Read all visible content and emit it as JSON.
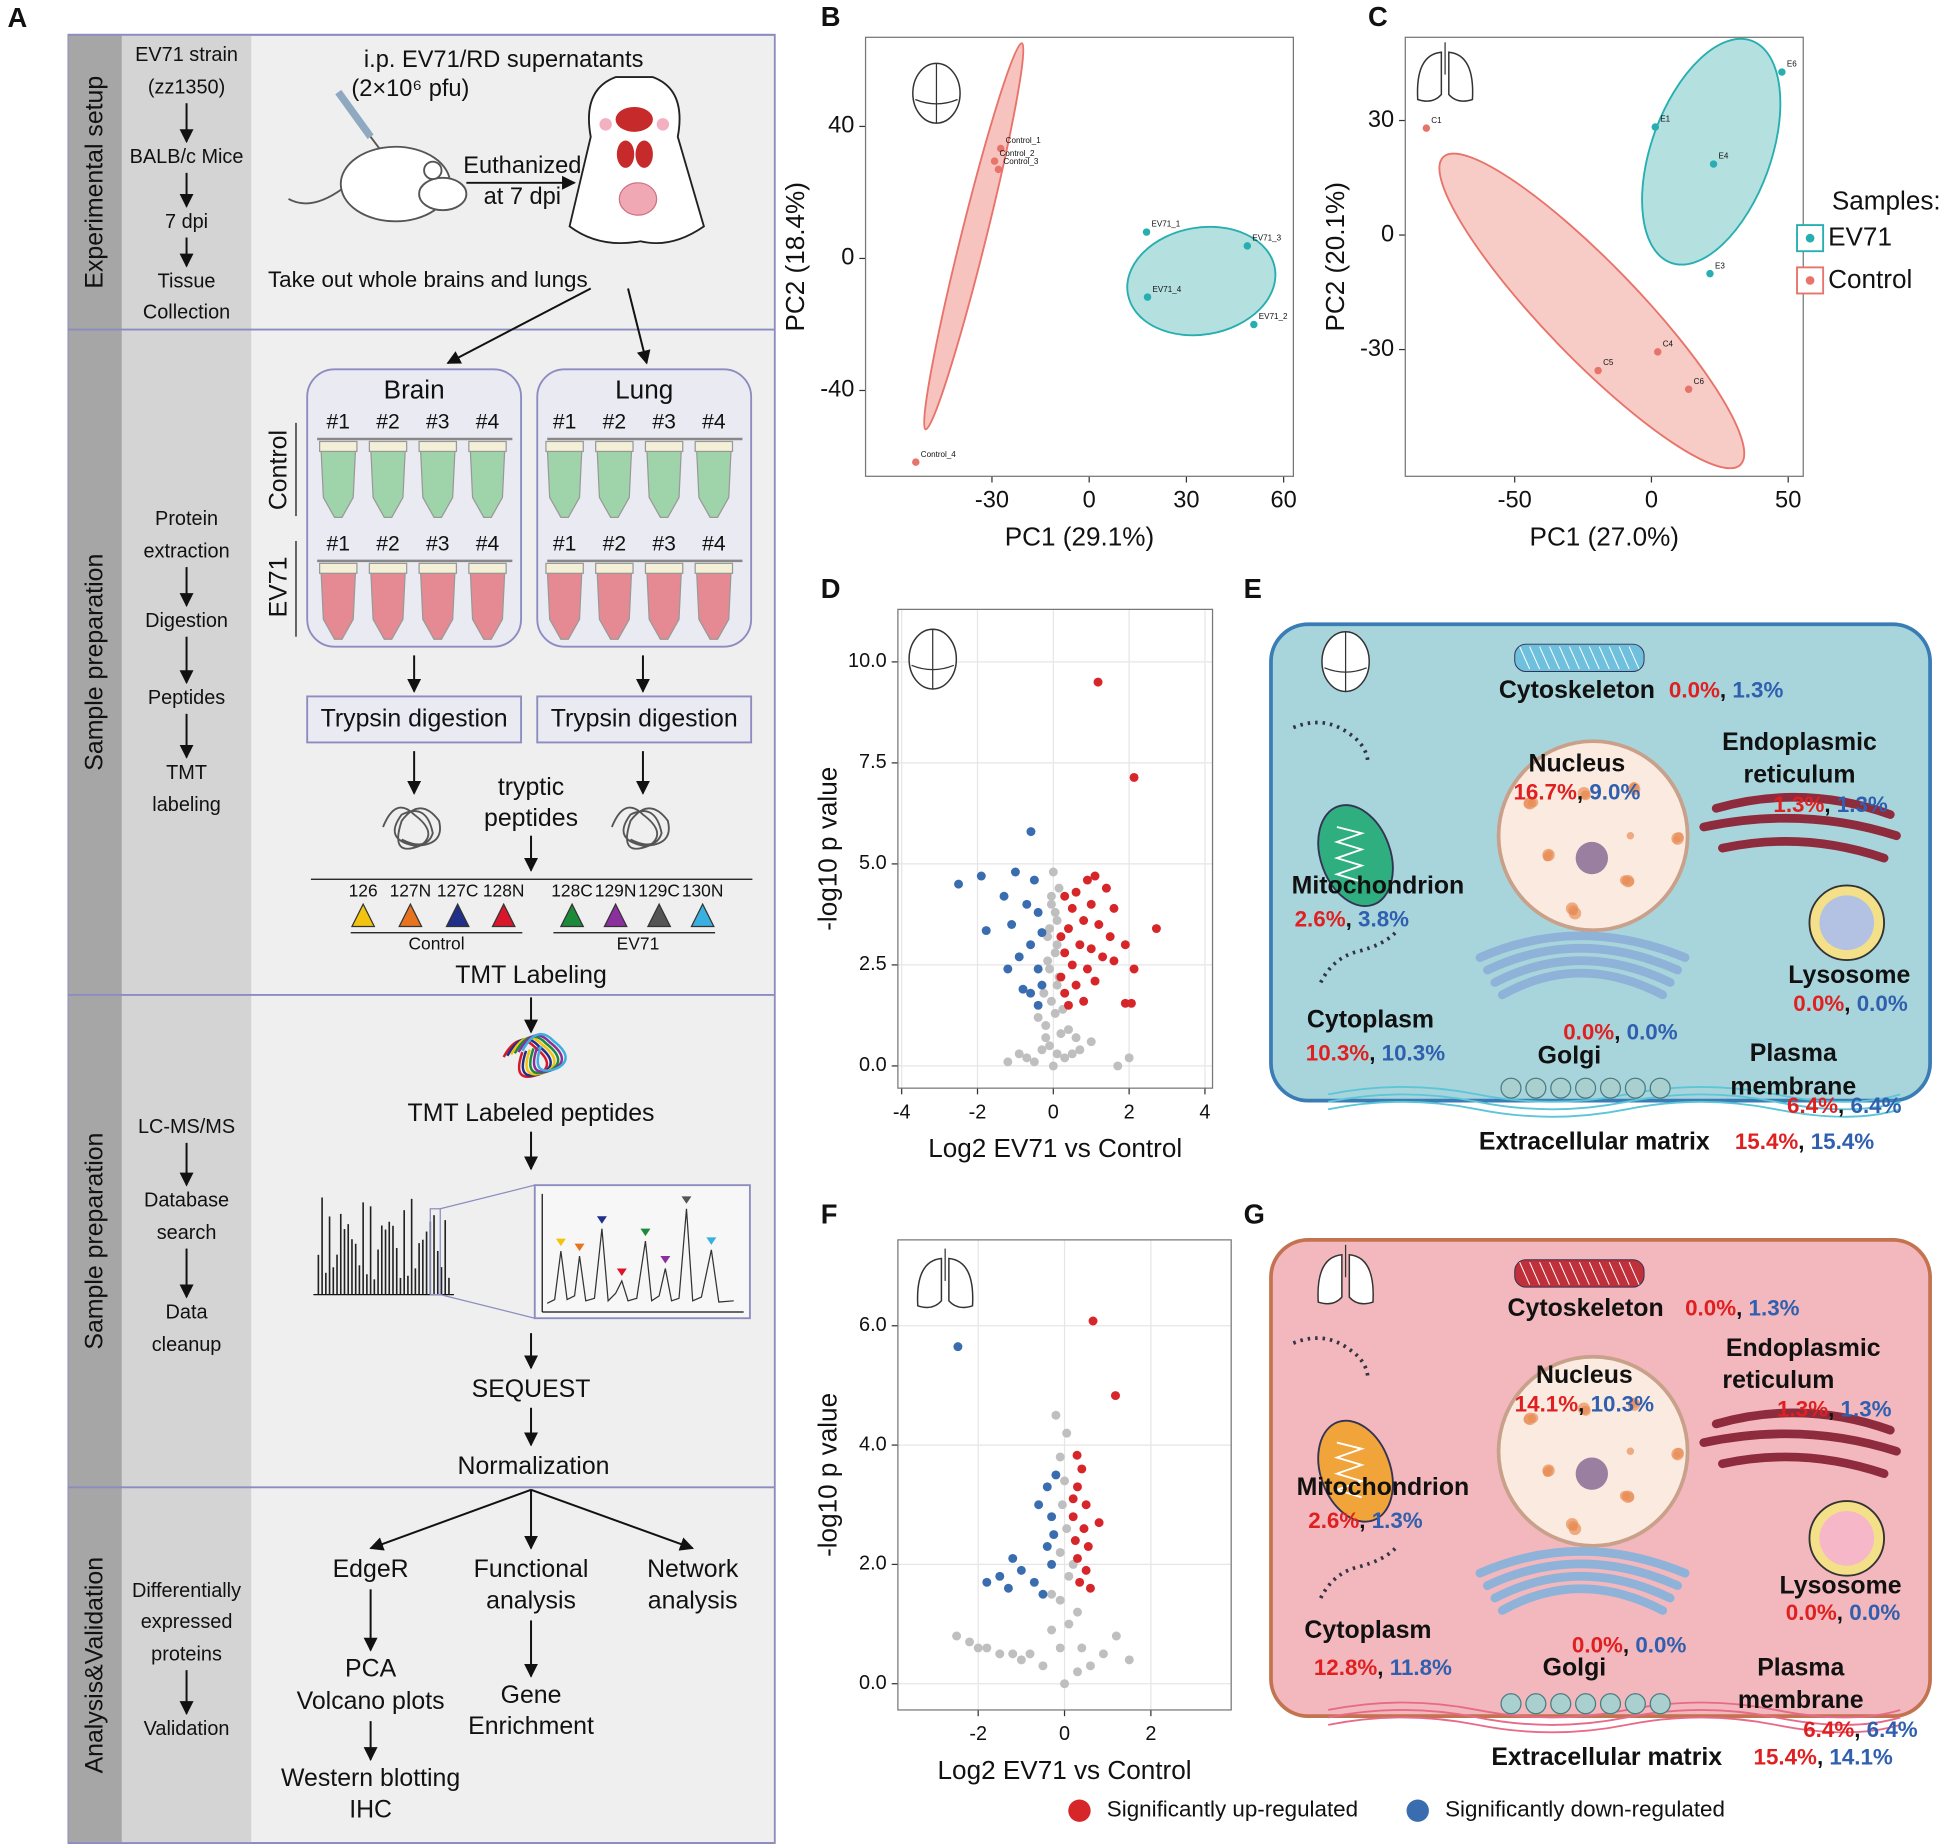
{
  "panel_a": {
    "label": "A",
    "rows": [
      {
        "title": "Experimental setup",
        "steps": [
          [
            "EV71 strain",
            "(zz1350)"
          ],
          [
            "BALB/c Mice"
          ],
          [
            "7 dpi"
          ],
          [
            "Tissue",
            "Collection"
          ]
        ]
      },
      {
        "title": "Sample preparation",
        "steps": [
          [
            "Protein",
            "extraction"
          ],
          [
            "Digestion"
          ],
          [
            "Peptides"
          ],
          [
            "TMT",
            "labeling"
          ]
        ]
      },
      {
        "title": "Sample preparation",
        "steps": [
          [
            "LC-MS/MS"
          ],
          [
            "Database",
            "search"
          ],
          [
            "Data",
            "cleanup"
          ]
        ]
      },
      {
        "title": "Analysis&Validation",
        "steps": [
          [
            "Differentially",
            "expressed",
            "proteins"
          ],
          [
            "Validation"
          ]
        ]
      }
    ],
    "injection": [
      "i.p. EV71/RD supernatants",
      "(2×10⁶ pfu)"
    ],
    "euthanized": [
      "Euthanized",
      "at 7 dpi"
    ],
    "dissection": "Take out whole brains and lungs",
    "tissues": [
      "Brain",
      "Lung"
    ],
    "tubes": [
      "#1",
      "#2",
      "#3",
      "#4"
    ],
    "groups": [
      "Control",
      "EV71"
    ],
    "digestion": "Trypsin digestion",
    "peptides": [
      "tryptic",
      "peptides"
    ],
    "tmt_tags": [
      {
        "label": "126",
        "color": "#f2c30f"
      },
      {
        "label": "127N",
        "color": "#e8731e"
      },
      {
        "label": "127C",
        "color": "#1f2f8a"
      },
      {
        "label": "128N",
        "color": "#d8182a"
      },
      {
        "label": "128C",
        "color": "#1b8a3a"
      },
      {
        "label": "129N",
        "color": "#8b2f9e"
      },
      {
        "label": "129C",
        "color": "#555555"
      },
      {
        "label": "130N",
        "color": "#3ab0e0"
      }
    ],
    "tmt_labeling": "TMT Labeling",
    "labeled_peptides": "TMT Labeled peptides",
    "search": "SEQUEST",
    "normalization": "Normalization",
    "analyses": [
      {
        "lines": [
          "EdgeR"
        ],
        "next": [
          [
            "PCA",
            "Volcano plots"
          ],
          [
            "Western blotting",
            "IHC"
          ]
        ]
      },
      {
        "lines": [
          "Functional",
          "analysis"
        ],
        "next": [
          [
            "Gene",
            "Enrichment"
          ]
        ]
      },
      {
        "lines": [
          "Network",
          "analysis"
        ]
      }
    ]
  },
  "chart_data": [
    {
      "type": "scatter",
      "panel": "B",
      "x_label": "PC1 (29.1%)",
      "y_label": "PC2 (18.4%)",
      "xlim": [
        -69,
        63
      ],
      "ylim": [
        -66,
        67
      ],
      "xticks": [
        -30,
        0,
        30,
        60
      ],
      "yticks": [
        -40,
        0,
        40
      ],
      "series": [
        {
          "color": "#e8736a",
          "x": [
            -27.3,
            -29.2,
            -28,
            -53.5
          ],
          "values": [
            33.3,
            29.5,
            27,
            -61.7
          ],
          "point_labels": [
            "Control_1",
            "Control_2",
            "Control_3",
            "Control_4"
          ]
        },
        {
          "color": "#26aeb0",
          "x": [
            17.7,
            50.8,
            48.8,
            18
          ],
          "values": [
            8,
            -20,
            3.8,
            -11.7
          ],
          "point_labels": [
            "EV71_1",
            "EV71_2",
            "EV71_3",
            "EV71_4"
          ]
        }
      ]
    },
    {
      "type": "scatter",
      "panel": "C",
      "x_label": "PC1 (27.0%)",
      "y_label": "PC2 (20.1%)",
      "xlim": [
        -90,
        55.5
      ],
      "ylim": [
        -63.2,
        51.8
      ],
      "xticks": [
        -50,
        0,
        50
      ],
      "yticks": [
        -30,
        0,
        30
      ],
      "legend": "right",
      "legend_title": "Samples:",
      "series": [
        {
          "name": "EV71",
          "color": "#26aeb0",
          "x": [
            1.4,
            21.4,
            22.7,
            47.7
          ],
          "values": [
            28.3,
            -10.1,
            18.6,
            42.7
          ],
          "point_labels": [
            "E1",
            "E3",
            "E4",
            "E6"
          ]
        },
        {
          "name": "Control",
          "color": "#e8736a",
          "x": [
            -82.3,
            2.3,
            -19.5,
            13.6
          ],
          "values": [
            28,
            -30.6,
            -35.5,
            -40.4
          ],
          "point_labels": [
            "C1",
            "C4",
            "C5",
            "C6"
          ]
        }
      ]
    },
    {
      "type": "scatter",
      "panel": "D",
      "x_label": "Log2 EV71 vs Control",
      "y_label": "-log10 p value",
      "grid": true,
      "xlim": [
        -4.1,
        4.2
      ],
      "ylim": [
        -0.55,
        11.3
      ],
      "xticks": [
        -4,
        -2,
        0,
        2,
        4
      ],
      "yticks": [
        {
          "value": 0,
          "label": "0.0"
        },
        2.5,
        {
          "value": 5,
          "label": "5.0"
        },
        7.5,
        {
          "value": 10,
          "label": "10.0"
        }
      ],
      "series": [
        {
          "color": "#bfbfbf",
          "x": [
            0,
            0.1,
            -0.1,
            0.2,
            -0.2,
            0.05,
            -0.05,
            0.1,
            -0.1,
            0.05,
            -0.15,
            0.1,
            -0.05,
            0.15,
            0,
            -0.3,
            0.3,
            -0.5,
            0.5,
            -0.2,
            0.4,
            -0.4,
            0.25,
            -0.25,
            0.15,
            -0.15,
            0.1,
            -0.1,
            0.05,
            -0.05,
            -0.7,
            0.7,
            -0.9,
            1.0,
            1.7,
            2.0,
            -1.2,
            0.6
          ],
          "values": [
            0,
            0.3,
            0.5,
            0.8,
            1.0,
            1.3,
            1.6,
            2.0,
            2.4,
            2.8,
            3.2,
            3.6,
            4.0,
            4.4,
            4.8,
            0.4,
            0.2,
            0.1,
            0.3,
            0.7,
            0.9,
            1.2,
            1.4,
            1.8,
            2.2,
            2.6,
            3.0,
            3.4,
            3.8,
            4.2,
            0.2,
            0.4,
            0.3,
            0.6,
            0.0,
            0.2,
            0.1,
            0.7
          ]
        },
        {
          "color": "#d7262a",
          "x": [
            1.18,
            2.13,
            2.72,
            2.13,
            1.9,
            2.06,
            1.1,
            0.9,
            1.4,
            0.6,
            0.3,
            1.0,
            0.5,
            1.6,
            0.8,
            1.2,
            0.4,
            0.2,
            1.5,
            0.7,
            1.0,
            0.3,
            1.3,
            0.5,
            0.9,
            0.2,
            1.1,
            0.6,
            0.3,
            0.8,
            1.6,
            0.4,
            1.9
          ],
          "values": [
            9.5,
            7.14,
            3.4,
            2.4,
            1.55,
            1.55,
            4.7,
            4.6,
            4.4,
            4.3,
            4.2,
            4.0,
            3.9,
            3.9,
            3.6,
            3.5,
            3.4,
            3.2,
            3.2,
            3.0,
            2.9,
            2.8,
            2.7,
            2.5,
            2.4,
            2.2,
            2.1,
            2.0,
            1.8,
            1.6,
            2.6,
            1.5,
            3.0
          ]
        },
        {
          "color": "#3a6db0",
          "x": [
            -0.59,
            -2.5,
            -1.77,
            -1.9,
            -1.0,
            -0.5,
            -1.3,
            -0.7,
            -0.4,
            -1.1,
            -0.3,
            -0.6,
            -0.9,
            -0.4,
            -1.2,
            -0.3,
            -0.6,
            -0.4,
            -0.8
          ],
          "values": [
            5.8,
            4.5,
            3.35,
            4.7,
            4.8,
            4.6,
            4.2,
            4.0,
            3.8,
            3.5,
            3.3,
            3.0,
            2.7,
            2.4,
            2.4,
            2.0,
            1.8,
            1.5,
            1.9
          ]
        }
      ]
    },
    {
      "type": "scatter",
      "panel": "F",
      "x_label": "Log2 EV71 vs Control",
      "y_label": "-log10 p value",
      "grid": true,
      "legend": "bottom",
      "xlim": [
        -3.86,
        3.86
      ],
      "ylim": [
        -0.44,
        7.44
      ],
      "xticks": [
        -2,
        0,
        2
      ],
      "yticks": [
        {
          "value": 0,
          "label": "0.0"
        },
        {
          "value": 2,
          "label": "2.0"
        },
        {
          "value": 4,
          "label": "4.0"
        },
        {
          "value": 6,
          "label": "6.0"
        }
      ],
      "series": [
        {
          "color": "#bfbfbf",
          "x": [
            -2.5,
            -2.0,
            -1.5,
            -1.0,
            -0.5,
            0,
            0.3,
            0.6,
            0.9,
            1.2,
            -0.1,
            0.1,
            -0.1,
            0.1,
            -0.1,
            0.05,
            -0.05,
            0,
            -0.1,
            0.05,
            -0.2,
            -0.8,
            -1.8,
            -2.2,
            -0.3,
            0.3,
            -0.3,
            0.2,
            1.5,
            -1.2,
            0.4
          ],
          "values": [
            0.8,
            0.6,
            0.5,
            0.4,
            0.3,
            0,
            0.2,
            0.3,
            0.5,
            0.8,
            0.6,
            1.0,
            1.4,
            1.8,
            2.2,
            2.6,
            3.0,
            3.4,
            3.8,
            4.2,
            4.5,
            0.5,
            0.6,
            0.7,
            0.9,
            1.2,
            1.5,
            2.0,
            0.4,
            0.5,
            0.6
          ]
        },
        {
          "name": "Significantly up-regulated",
          "color": "#d7262a",
          "x": [
            0.66,
            1.18,
            0.29,
            0.8,
            0.3,
            0.5,
            0.2,
            0.45,
            0.25,
            0.55,
            0.3,
            0.5,
            0.35,
            0.6,
            0.4,
            0.2
          ],
          "values": [
            6.08,
            4.83,
            3.83,
            2.7,
            3.3,
            3.0,
            2.8,
            2.6,
            2.4,
            2.3,
            2.1,
            1.9,
            1.7,
            1.6,
            3.6,
            3.1
          ]
        },
        {
          "name": "Significantly down-regulated",
          "color": "#3a6db0",
          "x": [
            -2.47,
            -0.2,
            -0.4,
            -0.6,
            -0.3,
            -1.2,
            -1.5,
            -1.0,
            -1.8,
            -0.7,
            -0.4,
            -0.3,
            -0.5,
            -1.3,
            -0.25
          ],
          "values": [
            5.65,
            3.5,
            3.3,
            3.0,
            2.8,
            2.1,
            1.8,
            1.9,
            1.7,
            1.7,
            2.3,
            2.0,
            1.5,
            1.6,
            2.5
          ]
        }
      ]
    }
  ],
  "separator": ", ",
  "cell_panels": [
    {
      "label": "E",
      "items": [
        {
          "name": [
            "Cytoskeleton"
          ],
          "up": "0.0%",
          "down": "1.3%"
        },
        {
          "name": [
            "Nucleus"
          ],
          "up": "16.7%",
          "down": "9.0%"
        },
        {
          "name": [
            "Endoplasmic",
            "reticulum"
          ],
          "up": "1.3%",
          "down": "1.3%"
        },
        {
          "name": [
            "Mitochondrion"
          ],
          "up": "2.6%",
          "down": "3.8%"
        },
        {
          "name": [
            "Cytoplasm"
          ],
          "up": "10.3%",
          "down": "10.3%"
        },
        {
          "name": [
            "Golgi"
          ],
          "up": "0.0%",
          "down": "0.0%"
        },
        {
          "name": [
            "Lysosome"
          ],
          "up": "0.0%",
          "down": "0.0%"
        },
        {
          "name": [
            "Plasma",
            "membrane"
          ],
          "up": "6.4%",
          "down": "6.4%"
        },
        {
          "name": [
            "Extracellular matrix"
          ],
          "up": "15.4%",
          "down": "15.4%"
        }
      ]
    },
    {
      "label": "G",
      "items": [
        {
          "name": [
            "Cytoskeleton"
          ],
          "up": "0.0%",
          "down": "1.3%"
        },
        {
          "name": [
            "Nucleus"
          ],
          "up": "14.1%",
          "down": "10.3%"
        },
        {
          "name": [
            "Endoplasmic",
            "reticulum"
          ],
          "up": "1.3%",
          "down": "1.3%"
        },
        {
          "name": [
            "Mitochondrion"
          ],
          "up": "2.6%",
          "down": "1.3%"
        },
        {
          "name": [
            "Cytoplasm"
          ],
          "up": "12.8%",
          "down": "11.8%"
        },
        {
          "name": [
            "Golgi"
          ],
          "up": "0.0%",
          "down": "0.0%"
        },
        {
          "name": [
            "Lysosome"
          ],
          "up": "0.0%",
          "down": "0.0%"
        },
        {
          "name": [
            "Plasma",
            "membrane"
          ],
          "up": "6.4%",
          "down": "6.4%"
        },
        {
          "name": [
            "Extracellular matrix"
          ],
          "up": "15.4%",
          "down": "14.1%"
        }
      ]
    }
  ]
}
